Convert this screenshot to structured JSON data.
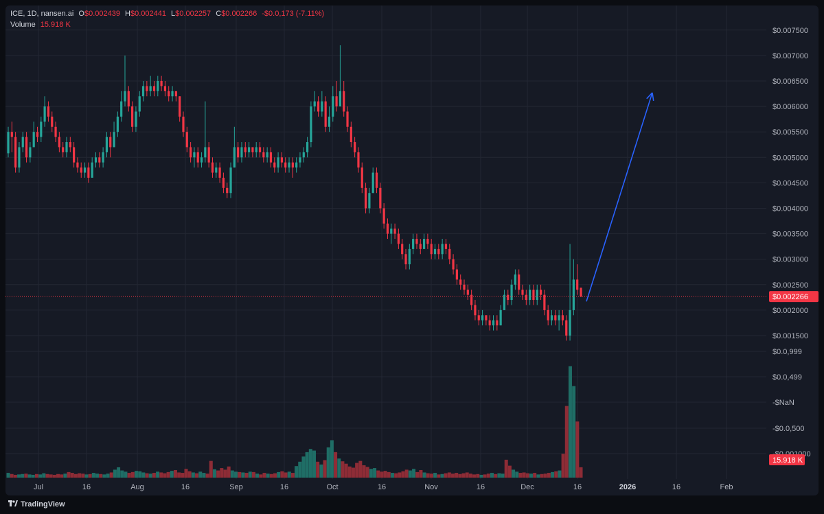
{
  "legend": {
    "symbol_line": "ICE, 1D, nansen.ai",
    "open_label": "O",
    "open_value": "$0.002439",
    "high_label": "H",
    "high_value": "$0.002441",
    "low_label": "L",
    "low_value": "$0.002257",
    "close_label": "C",
    "close_value": "$0.002266",
    "change_value": "-$0.0,173 (-7.11%)",
    "volume_label": "Volume",
    "volume_value": "15.918 K"
  },
  "colors": {
    "up": "#26a69a",
    "down": "#f23645",
    "background": "#161a25",
    "grid": "#232733",
    "text": "#b2b5be",
    "arrow": "#2962ff",
    "volume_up": "#1f6e66",
    "volume_down": "#8e2c36"
  },
  "footer": {
    "brand": "TradingView",
    "logo_icon": "tradingview-logo-icon"
  },
  "chart_data": {
    "type": "candlestick",
    "interval": "1D",
    "price_axis": {
      "range": [
        0.0011,
        0.0076
      ],
      "ticks": [
        {
          "value": 0.0075,
          "label": "$0.007500"
        },
        {
          "value": 0.007,
          "label": "$0.007000"
        },
        {
          "value": 0.0065,
          "label": "$0.006500"
        },
        {
          "value": 0.006,
          "label": "$0.006000"
        },
        {
          "value": 0.0055,
          "label": "$0.005500"
        },
        {
          "value": 0.005,
          "label": "$0.005000"
        },
        {
          "value": 0.0045,
          "label": "$0.004500"
        },
        {
          "value": 0.004,
          "label": "$0.004000"
        },
        {
          "value": 0.0035,
          "label": "$0.003500"
        },
        {
          "value": 0.003,
          "label": "$0.003000"
        },
        {
          "value": 0.0025,
          "label": "$0.002500"
        },
        {
          "value": 0.002,
          "label": "$0.002000"
        },
        {
          "value": 0.0015,
          "label": "$0.001500"
        }
      ],
      "distorted_ticks": [
        "$0.0,999",
        "$0.0,499",
        "-$NaN",
        "-$0.0,500",
        "-$0.001000"
      ],
      "last_price": 0.002266,
      "last_price_label": "$0.002266"
    },
    "volume": {
      "last_label": "15.918 K"
    },
    "time_axis": [
      "Jul",
      "16",
      "Aug",
      "16",
      "Sep",
      "16",
      "Oct",
      "16",
      "Nov",
      "16",
      "Dec",
      "16",
      "2026",
      "16",
      "Feb"
    ],
    "annotation": {
      "type": "arrow",
      "from": 0.00217,
      "to": 0.00627
    },
    "candles": [
      [
        0.00508,
        0.0055,
        0.0056,
        0.005
      ],
      [
        0.0055,
        0.0054,
        0.0057,
        0.0051
      ],
      [
        0.0054,
        0.0048,
        0.0055,
        0.0047
      ],
      [
        0.0048,
        0.0052,
        0.0053,
        0.0047
      ],
      [
        0.0052,
        0.0054,
        0.0055,
        0.0051
      ],
      [
        0.0054,
        0.005,
        0.0055,
        0.0049
      ],
      [
        0.005,
        0.0052,
        0.0053,
        0.0049
      ],
      [
        0.0052,
        0.0055,
        0.0057,
        0.0052
      ],
      [
        0.0055,
        0.0054,
        0.0056,
        0.0053
      ],
      [
        0.0054,
        0.0057,
        0.0058,
        0.0053
      ],
      [
        0.0057,
        0.006,
        0.0062,
        0.0056
      ],
      [
        0.006,
        0.0058,
        0.0061,
        0.0057
      ],
      [
        0.0058,
        0.0056,
        0.0059,
        0.0055
      ],
      [
        0.0056,
        0.0054,
        0.0057,
        0.0053
      ],
      [
        0.0054,
        0.0052,
        0.0055,
        0.0051
      ],
      [
        0.0052,
        0.0051,
        0.0053,
        0.005
      ],
      [
        0.0051,
        0.0053,
        0.0054,
        0.005
      ],
      [
        0.0053,
        0.0052,
        0.0054,
        0.0051
      ],
      [
        0.0052,
        0.0049,
        0.0053,
        0.0048
      ],
      [
        0.0049,
        0.0048,
        0.005,
        0.0047
      ],
      [
        0.0048,
        0.0047,
        0.0049,
        0.0046
      ],
      [
        0.0047,
        0.0048,
        0.0049,
        0.0046
      ],
      [
        0.0048,
        0.0046,
        0.0049,
        0.0045
      ],
      [
        0.0046,
        0.0049,
        0.005,
        0.0046
      ],
      [
        0.0049,
        0.005,
        0.0051,
        0.0048
      ],
      [
        0.005,
        0.0049,
        0.0051,
        0.0048
      ],
      [
        0.0049,
        0.0051,
        0.0052,
        0.0048
      ],
      [
        0.0051,
        0.0054,
        0.0055,
        0.005
      ],
      [
        0.0054,
        0.0052,
        0.0055,
        0.005
      ],
      [
        0.0052,
        0.0055,
        0.0057,
        0.0052
      ],
      [
        0.0055,
        0.0058,
        0.0059,
        0.0054
      ],
      [
        0.0058,
        0.0061,
        0.0063,
        0.0057
      ],
      [
        0.0061,
        0.0063,
        0.007,
        0.006
      ],
      [
        0.0063,
        0.006,
        0.0064,
        0.0059
      ],
      [
        0.006,
        0.0056,
        0.0061,
        0.0055
      ],
      [
        0.0056,
        0.0059,
        0.006,
        0.0055
      ],
      [
        0.0059,
        0.0062,
        0.0063,
        0.0058
      ],
      [
        0.0062,
        0.0064,
        0.0065,
        0.0061
      ],
      [
        0.0064,
        0.0063,
        0.0065,
        0.0062
      ],
      [
        0.0063,
        0.0064,
        0.0066,
        0.0062
      ],
      [
        0.0064,
        0.0063,
        0.0065,
        0.0062
      ],
      [
        0.0063,
        0.0065,
        0.0066,
        0.0062
      ],
      [
        0.0065,
        0.0064,
        0.0066,
        0.0063
      ],
      [
        0.0064,
        0.0063,
        0.0065,
        0.0062
      ],
      [
        0.0063,
        0.0062,
        0.0064,
        0.0061
      ],
      [
        0.0062,
        0.0063,
        0.0064,
        0.0061
      ],
      [
        0.0063,
        0.0062,
        0.0063,
        0.0061
      ],
      [
        0.0062,
        0.0058,
        0.0062,
        0.0057
      ],
      [
        0.0058,
        0.0055,
        0.0059,
        0.0054
      ],
      [
        0.0055,
        0.0052,
        0.0056,
        0.0051
      ],
      [
        0.0052,
        0.005,
        0.0053,
        0.0049
      ],
      [
        0.005,
        0.0051,
        0.0052,
        0.0048
      ],
      [
        0.0051,
        0.0049,
        0.0052,
        0.0048
      ],
      [
        0.0049,
        0.005,
        0.0051,
        0.0048
      ],
      [
        0.005,
        0.0052,
        0.0061,
        0.0049
      ],
      [
        0.0052,
        0.0049,
        0.0053,
        0.0048
      ],
      [
        0.0049,
        0.0047,
        0.005,
        0.0046
      ],
      [
        0.0047,
        0.0048,
        0.0049,
        0.0046
      ],
      [
        0.0048,
        0.0046,
        0.0049,
        0.0045
      ],
      [
        0.0046,
        0.0044,
        0.0047,
        0.0043
      ],
      [
        0.0044,
        0.0043,
        0.0045,
        0.0042
      ],
      [
        0.0043,
        0.0048,
        0.0049,
        0.0042
      ],
      [
        0.0048,
        0.0052,
        0.0056,
        0.0048
      ],
      [
        0.0052,
        0.005,
        0.0053,
        0.0049
      ],
      [
        0.005,
        0.0052,
        0.0053,
        0.0049
      ],
      [
        0.0052,
        0.0051,
        0.0053,
        0.005
      ],
      [
        0.0051,
        0.0052,
        0.0053,
        0.005
      ],
      [
        0.0052,
        0.0051,
        0.0052,
        0.005
      ],
      [
        0.0051,
        0.0052,
        0.0053,
        0.005
      ],
      [
        0.0052,
        0.0051,
        0.0053,
        0.005
      ],
      [
        0.0051,
        0.005,
        0.0052,
        0.0049
      ],
      [
        0.005,
        0.0051,
        0.0052,
        0.0049
      ],
      [
        0.0051,
        0.0049,
        0.0052,
        0.0048
      ],
      [
        0.0049,
        0.0048,
        0.005,
        0.0047
      ],
      [
        0.0048,
        0.005,
        0.0051,
        0.0047
      ],
      [
        0.005,
        0.0049,
        0.0051,
        0.0048
      ],
      [
        0.0049,
        0.0048,
        0.005,
        0.0047
      ],
      [
        0.0048,
        0.0049,
        0.005,
        0.0047
      ],
      [
        0.0049,
        0.0048,
        0.005,
        0.0046
      ],
      [
        0.0048,
        0.0049,
        0.005,
        0.0047
      ],
      [
        0.0049,
        0.005,
        0.0051,
        0.0048
      ],
      [
        0.005,
        0.0051,
        0.0052,
        0.0049
      ],
      [
        0.0051,
        0.0053,
        0.0054,
        0.005
      ],
      [
        0.0053,
        0.006,
        0.0061,
        0.0052
      ],
      [
        0.006,
        0.0061,
        0.0063,
        0.0059
      ],
      [
        0.0061,
        0.0059,
        0.0062,
        0.0058
      ],
      [
        0.0059,
        0.0061,
        0.0063,
        0.0058
      ],
      [
        0.0061,
        0.0056,
        0.0062,
        0.0055
      ],
      [
        0.0056,
        0.0058,
        0.006,
        0.0055
      ],
      [
        0.0058,
        0.0062,
        0.0064,
        0.0057
      ],
      [
        0.0062,
        0.006,
        0.0065,
        0.0059
      ],
      [
        0.006,
        0.0063,
        0.0072,
        0.006
      ],
      [
        0.0063,
        0.0059,
        0.0065,
        0.0058
      ],
      [
        0.0059,
        0.0056,
        0.006,
        0.0055
      ],
      [
        0.0056,
        0.0053,
        0.0057,
        0.0052
      ],
      [
        0.0053,
        0.0051,
        0.0054,
        0.005
      ],
      [
        0.0051,
        0.0048,
        0.0052,
        0.0047
      ],
      [
        0.0048,
        0.0044,
        0.0049,
        0.0043
      ],
      [
        0.0044,
        0.004,
        0.0045,
        0.0039
      ],
      [
        0.004,
        0.0043,
        0.0044,
        0.0039
      ],
      [
        0.0043,
        0.0047,
        0.0048,
        0.0043
      ],
      [
        0.0047,
        0.0044,
        0.0048,
        0.0043
      ],
      [
        0.0044,
        0.004,
        0.0045,
        0.0039
      ],
      [
        0.004,
        0.0037,
        0.0041,
        0.0036
      ],
      [
        0.0037,
        0.0035,
        0.0038,
        0.0034
      ],
      [
        0.0035,
        0.0036,
        0.0037,
        0.0033
      ],
      [
        0.0036,
        0.0035,
        0.0037,
        0.0034
      ],
      [
        0.0035,
        0.0033,
        0.0036,
        0.0032
      ],
      [
        0.0033,
        0.0031,
        0.0034,
        0.003
      ],
      [
        0.0031,
        0.0029,
        0.0032,
        0.0028
      ],
      [
        0.0029,
        0.0032,
        0.0033,
        0.0028
      ],
      [
        0.0032,
        0.0034,
        0.0035,
        0.0031
      ],
      [
        0.0034,
        0.0033,
        0.0035,
        0.0032
      ],
      [
        0.0033,
        0.0032,
        0.0034,
        0.0031
      ],
      [
        0.0032,
        0.0034,
        0.0035,
        0.0032
      ],
      [
        0.0034,
        0.0033,
        0.0035,
        0.0032
      ],
      [
        0.0033,
        0.0031,
        0.0034,
        0.003
      ],
      [
        0.0031,
        0.0032,
        0.0033,
        0.003
      ],
      [
        0.0032,
        0.0031,
        0.0033,
        0.003
      ],
      [
        0.0031,
        0.0033,
        0.0034,
        0.003
      ],
      [
        0.0033,
        0.0032,
        0.0034,
        0.0031
      ],
      [
        0.0032,
        0.003,
        0.0033,
        0.0029
      ],
      [
        0.003,
        0.0028,
        0.0031,
        0.0027
      ],
      [
        0.0028,
        0.0026,
        0.0029,
        0.0025
      ],
      [
        0.0026,
        0.0025,
        0.0027,
        0.0024
      ],
      [
        0.0025,
        0.0024,
        0.0026,
        0.0023
      ],
      [
        0.0024,
        0.0023,
        0.0025,
        0.0022
      ],
      [
        0.0023,
        0.0021,
        0.0024,
        0.002
      ],
      [
        0.0021,
        0.0019,
        0.0022,
        0.0018
      ],
      [
        0.0019,
        0.0018,
        0.002,
        0.0017
      ],
      [
        0.0018,
        0.0019,
        0.002,
        0.0017
      ],
      [
        0.0019,
        0.0018,
        0.0019,
        0.0017
      ],
      [
        0.0018,
        0.0017,
        0.0019,
        0.0016
      ],
      [
        0.0017,
        0.0018,
        0.0019,
        0.0016
      ],
      [
        0.0018,
        0.0017,
        0.0019,
        0.0016
      ],
      [
        0.0017,
        0.002,
        0.0021,
        0.0017
      ],
      [
        0.002,
        0.0023,
        0.0024,
        0.002
      ],
      [
        0.0023,
        0.0022,
        0.0024,
        0.0021
      ],
      [
        0.0022,
        0.0025,
        0.0026,
        0.0021
      ],
      [
        0.0025,
        0.0027,
        0.0028,
        0.0024
      ],
      [
        0.0027,
        0.0024,
        0.0028,
        0.0023
      ],
      [
        0.0024,
        0.0023,
        0.0025,
        0.0022
      ],
      [
        0.0023,
        0.0022,
        0.0024,
        0.0021
      ],
      [
        0.0022,
        0.0024,
        0.0025,
        0.0021
      ],
      [
        0.0024,
        0.0022,
        0.0025,
        0.0021
      ],
      [
        0.0022,
        0.0024,
        0.0025,
        0.0021
      ],
      [
        0.0024,
        0.0023,
        0.0025,
        0.0022
      ],
      [
        0.0023,
        0.002,
        0.0024,
        0.0019
      ],
      [
        0.002,
        0.0018,
        0.0021,
        0.0017
      ],
      [
        0.0018,
        0.0019,
        0.002,
        0.0017
      ],
      [
        0.0019,
        0.0018,
        0.002,
        0.0017
      ],
      [
        0.0018,
        0.0019,
        0.002,
        0.0016
      ],
      [
        0.0019,
        0.0018,
        0.002,
        0.0017
      ],
      [
        0.0018,
        0.0015,
        0.0019,
        0.0014
      ],
      [
        0.0015,
        0.002,
        0.0033,
        0.0014
      ],
      [
        0.002,
        0.0026,
        0.003,
        0.0019
      ],
      [
        0.0026,
        0.0024,
        0.0029,
        0.0023
      ],
      [
        0.002439,
        0.002266,
        0.002441,
        0.002257
      ]
    ],
    "volumes": [
      12,
      9,
      7,
      8,
      9,
      10,
      8,
      7,
      9,
      8,
      11,
      9,
      8,
      7,
      9,
      8,
      10,
      14,
      12,
      9,
      11,
      10,
      8,
      9,
      12,
      10,
      9,
      8,
      10,
      13,
      20,
      26,
      18,
      15,
      12,
      14,
      17,
      16,
      13,
      11,
      10,
      12,
      15,
      13,
      11,
      14,
      17,
      19,
      13,
      12,
      22,
      16,
      13,
      11,
      15,
      12,
      10,
      42,
      21,
      18,
      24,
      20,
      28,
      18,
      15,
      14,
      13,
      12,
      15,
      14,
      10,
      8,
      12,
      10,
      9,
      11,
      14,
      16,
      13,
      15,
      12,
      29,
      40,
      53,
      64,
      72,
      68,
      40,
      33,
      44,
      76,
      94,
      64,
      48,
      41,
      35,
      28,
      25,
      37,
      42,
      31,
      27,
      22,
      24,
      18,
      15,
      17,
      14,
      12,
      11,
      13,
      16,
      20,
      18,
      22,
      14,
      19,
      13,
      11,
      10,
      12,
      8,
      9,
      11,
      13,
      10,
      12,
      9,
      11,
      13,
      10,
      8,
      9,
      7,
      8,
      10,
      12,
      9,
      11,
      10,
      45,
      30,
      20,
      15,
      12,
      13,
      11,
      10,
      12,
      8,
      9,
      10,
      12,
      14,
      16,
      18,
      60,
      180,
      280,
      230,
      141,
      26
    ]
  }
}
